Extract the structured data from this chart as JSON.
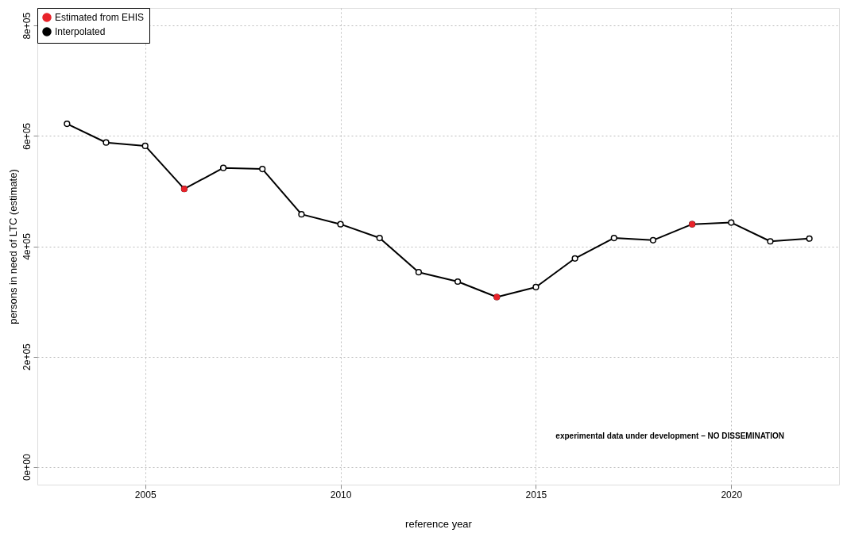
{
  "chart_data": {
    "type": "line",
    "xlabel": "reference year",
    "ylabel": "persons in need of LTC (estimate)",
    "x": [
      2003,
      2004,
      2005,
      2006,
      2007,
      2008,
      2009,
      2010,
      2011,
      2012,
      2013,
      2014,
      2015,
      2016,
      2017,
      2018,
      2019,
      2020,
      2021,
      2022
    ],
    "series": [
      {
        "name": "Estimated from EHIS",
        "type": "scatter",
        "color": "#e8232a",
        "x": [
          2006,
          2014,
          2019
        ],
        "values": [
          504000,
          308000,
          440000
        ]
      },
      {
        "name": "Interpolated",
        "color": "#000000",
        "marker": "circle",
        "values": [
          622000,
          588000,
          582000,
          504000,
          542000,
          540000,
          458000,
          440000,
          415000,
          353000,
          336000,
          308000,
          326000,
          378000,
          415000,
          411000,
          440000,
          443000,
          409000,
          414000
        ]
      }
    ],
    "xlim": [
      2002.24,
      2022.76
    ],
    "xticks": [
      2005,
      2010,
      2015,
      2020
    ],
    "ylim": [
      -32000,
      832000
    ],
    "yticks": [
      {
        "value": 0,
        "label": "0e+00"
      },
      {
        "value": 200000,
        "label": "2e+05"
      },
      {
        "value": 400000,
        "label": "4e+05"
      },
      {
        "value": 600000,
        "label": "6e+05"
      },
      {
        "value": 800000,
        "label": "8e+05"
      }
    ],
    "grid": true,
    "legend": "top left",
    "line_style": "solid",
    "annotations": [
      "experimental data under development – NO DISSEMINATION"
    ]
  }
}
